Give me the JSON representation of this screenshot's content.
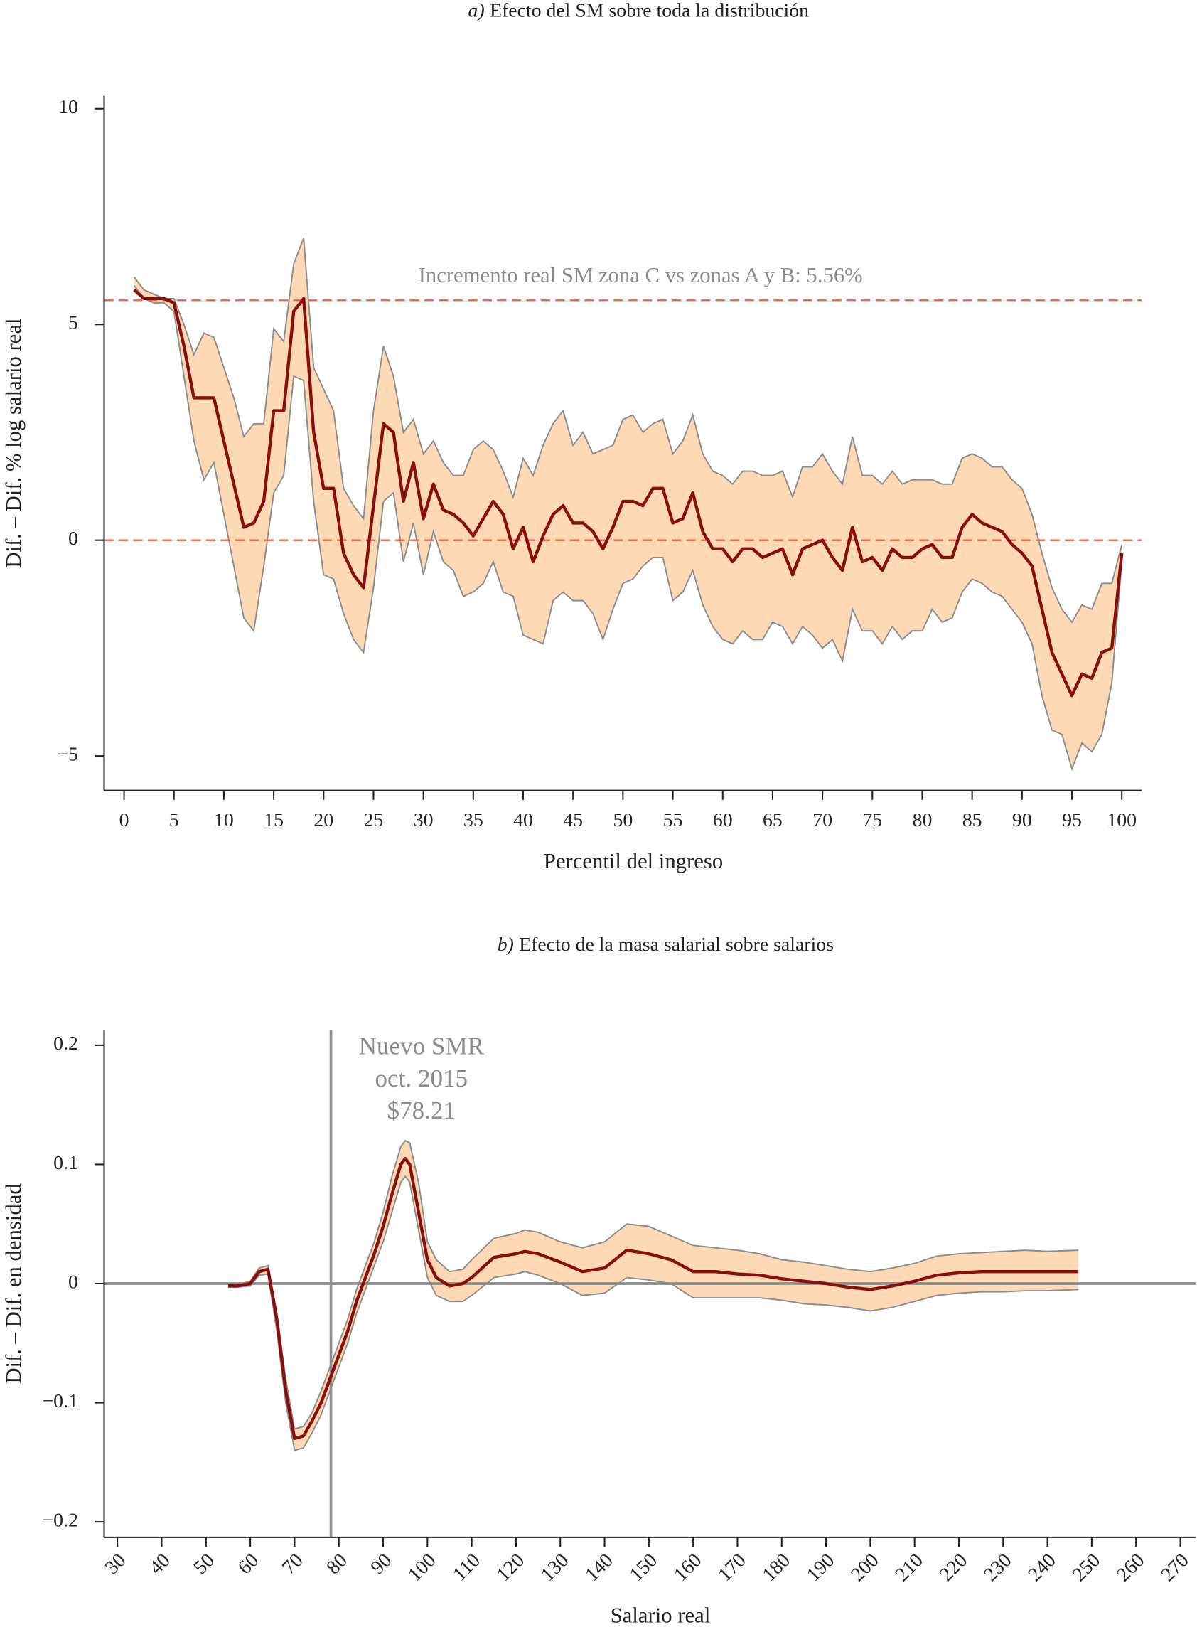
{
  "chart_data": [
    {
      "type": "line",
      "label": "a)",
      "title": "Efecto del SM sobre toda la distribución",
      "xlabel": "Percentil del ingreso",
      "ylabel": "Dif. – Dif. % log salario real",
      "xlim": [
        -2,
        102
      ],
      "ylim": [
        -5.8,
        10.3
      ],
      "xticks": [
        0,
        5,
        10,
        15,
        20,
        25,
        30,
        35,
        40,
        45,
        50,
        55,
        60,
        65,
        70,
        75,
        80,
        85,
        90,
        95,
        100
      ],
      "yticks": [
        {
          "value": -5,
          "label": "−5"
        },
        0,
        5,
        10
      ],
      "x": [
        1,
        2,
        3,
        4,
        5,
        6,
        7,
        8,
        9,
        10,
        11,
        12,
        13,
        14,
        15,
        16,
        17,
        18,
        19,
        20,
        21,
        22,
        23,
        24,
        25,
        26,
        27,
        28,
        29,
        30,
        31,
        32,
        33,
        34,
        35,
        36,
        37,
        38,
        39,
        40,
        41,
        42,
        43,
        44,
        45,
        46,
        47,
        48,
        49,
        50,
        51,
        52,
        53,
        54,
        55,
        56,
        57,
        58,
        59,
        60,
        61,
        62,
        63,
        64,
        65,
        66,
        67,
        68,
        69,
        70,
        71,
        72,
        73,
        74,
        75,
        76,
        77,
        78,
        79,
        80,
        81,
        82,
        83,
        84,
        85,
        86,
        87,
        88,
        89,
        90,
        91,
        92,
        93,
        94,
        95,
        96,
        97,
        98,
        99,
        100
      ],
      "values": [
        5.8,
        5.6,
        5.6,
        5.6,
        5.5,
        4.5,
        3.3,
        3.3,
        3.3,
        2.3,
        1.3,
        0.3,
        0.4,
        0.9,
        3.0,
        3.0,
        5.3,
        5.6,
        2.5,
        1.2,
        1.2,
        -0.3,
        -0.8,
        -1.1,
        0.8,
        2.7,
        2.5,
        0.9,
        1.8,
        0.5,
        1.3,
        0.7,
        0.6,
        0.4,
        0.1,
        0.5,
        0.9,
        0.6,
        -0.2,
        0.3,
        -0.5,
        0.1,
        0.6,
        0.8,
        0.4,
        0.4,
        0.2,
        -0.2,
        0.3,
        0.9,
        0.9,
        0.8,
        1.2,
        1.2,
        0.4,
        0.5,
        1.1,
        0.2,
        -0.2,
        -0.2,
        -0.5,
        -0.2,
        -0.2,
        -0.4,
        -0.3,
        -0.2,
        -0.8,
        -0.2,
        -0.1,
        0.0,
        -0.4,
        -0.7,
        0.3,
        -0.5,
        -0.4,
        -0.7,
        -0.2,
        -0.4,
        -0.4,
        -0.2,
        -0.1,
        -0.4,
        -0.4,
        0.3,
        0.6,
        0.4,
        0.3,
        0.2,
        -0.1,
        -0.3,
        -0.6,
        -1.6,
        -2.6,
        -3.1,
        -3.6,
        -3.1,
        -3.2,
        -2.6,
        -2.5,
        -0.3
      ],
      "upper": [
        6.1,
        5.8,
        5.7,
        5.6,
        5.6,
        5.0,
        4.3,
        4.8,
        4.7,
        4.0,
        3.3,
        2.4,
        2.7,
        2.7,
        4.9,
        4.6,
        6.4,
        7.0,
        4.0,
        3.5,
        3.0,
        1.2,
        0.8,
        0.5,
        3.0,
        4.5,
        3.8,
        2.5,
        2.8,
        2.0,
        2.3,
        1.8,
        1.5,
        1.5,
        2.1,
        2.3,
        2.1,
        1.6,
        1.0,
        1.9,
        1.5,
        2.2,
        2.7,
        3.0,
        2.2,
        2.5,
        2.0,
        2.1,
        2.2,
        2.8,
        2.9,
        2.5,
        2.7,
        2.8,
        2.0,
        2.3,
        2.9,
        2.0,
        1.6,
        1.5,
        1.3,
        1.6,
        1.6,
        1.5,
        1.5,
        1.6,
        1.0,
        1.7,
        1.7,
        2.0,
        1.6,
        1.3,
        2.4,
        1.5,
        1.5,
        1.3,
        1.6,
        1.3,
        1.4,
        1.4,
        1.4,
        1.3,
        1.3,
        1.9,
        2.0,
        1.9,
        1.7,
        1.7,
        1.4,
        1.2,
        0.6,
        -0.3,
        -1.1,
        -1.6,
        -1.9,
        -1.5,
        -1.6,
        -1.0,
        -1.0,
        -0.1
      ],
      "lower": [
        5.9,
        5.6,
        5.5,
        5.5,
        5.3,
        3.8,
        2.3,
        1.4,
        1.8,
        0.6,
        -0.6,
        -1.8,
        -2.1,
        -0.6,
        1.1,
        1.5,
        3.8,
        3.7,
        0.9,
        -0.8,
        -0.9,
        -1.7,
        -2.3,
        -2.6,
        -1.1,
        0.9,
        1.1,
        -0.5,
        0.4,
        -0.8,
        0.2,
        -0.5,
        -0.7,
        -1.3,
        -1.2,
        -1.0,
        -0.5,
        -1.2,
        -1.3,
        -2.2,
        -2.3,
        -2.4,
        -1.4,
        -1.2,
        -1.4,
        -1.4,
        -1.7,
        -2.3,
        -1.6,
        -1.0,
        -0.9,
        -0.6,
        -0.4,
        -0.4,
        -1.4,
        -1.2,
        -0.7,
        -1.5,
        -2.0,
        -2.3,
        -2.4,
        -2.1,
        -2.3,
        -2.3,
        -1.9,
        -2.0,
        -2.4,
        -2.0,
        -2.2,
        -2.5,
        -2.3,
        -2.8,
        -1.6,
        -2.1,
        -2.1,
        -2.4,
        -2.0,
        -2.3,
        -2.1,
        -2.1,
        -1.6,
        -1.9,
        -1.8,
        -1.2,
        -0.9,
        -1.0,
        -1.2,
        -1.3,
        -1.6,
        -1.9,
        -2.4,
        -3.6,
        -4.4,
        -4.5,
        -5.3,
        -4.7,
        -4.9,
        -4.5,
        -3.3,
        -0.5
      ],
      "color": "#8b0e0e",
      "band_color": "#fdd9b5",
      "band_edge": "#8c8c8c",
      "hlines": [
        {
          "value": 5.56,
          "label": "Incremento real SM zona C vs zonas A y B: 5.56%"
        },
        {
          "value": 0
        }
      ],
      "hline_color": "#e8643c",
      "hline_style": "dashed"
    },
    {
      "type": "line",
      "label": "b)",
      "title": "Efecto de la masa salarial sobre salarios",
      "xlabel": "Salario real",
      "ylabel": "Dif. – Dif. en densidad",
      "xlim": [
        27,
        273.5
      ],
      "ylim": [
        -0.213,
        0.213
      ],
      "xticks": [
        30,
        40,
        50,
        60,
        70,
        80,
        90,
        100,
        110,
        120,
        130,
        140,
        150,
        160,
        170,
        180,
        190,
        200,
        210,
        220,
        230,
        240,
        250,
        260,
        270
      ],
      "yticks": [
        {
          "value": -0.2,
          "label": "−0.2"
        },
        {
          "value": -0.1,
          "label": "−0.1"
        },
        0,
        0.1,
        0.2
      ],
      "x": [
        55,
        57,
        60,
        62,
        64,
        66,
        68,
        70,
        72,
        74,
        76,
        78,
        80,
        82,
        84,
        86,
        88,
        90,
        92,
        94,
        95,
        96,
        98,
        100,
        102,
        105,
        108,
        110,
        115,
        120,
        122,
        125,
        130,
        135,
        140,
        145,
        150,
        155,
        160,
        165,
        170,
        175,
        180,
        185,
        190,
        195,
        200,
        205,
        210,
        215,
        220,
        225,
        230,
        235,
        240,
        247
      ],
      "values": [
        -0.002,
        -0.002,
        0.0,
        0.01,
        0.012,
        -0.03,
        -0.09,
        -0.13,
        -0.128,
        -0.115,
        -0.1,
        -0.08,
        -0.06,
        -0.04,
        -0.015,
        0.005,
        0.025,
        0.048,
        0.075,
        0.1,
        0.105,
        0.1,
        0.06,
        0.02,
        0.005,
        -0.002,
        0.0,
        0.005,
        0.022,
        0.025,
        0.027,
        0.025,
        0.018,
        0.01,
        0.013,
        0.028,
        0.025,
        0.02,
        0.01,
        0.01,
        0.008,
        0.007,
        0.004,
        0.002,
        0.0,
        -0.003,
        -0.005,
        -0.002,
        0.002,
        0.007,
        0.009,
        0.01,
        0.01,
        0.01,
        0.01,
        0.01
      ],
      "upper": [
        -0.001,
        -0.001,
        0.002,
        0.013,
        0.015,
        -0.025,
        -0.08,
        -0.122,
        -0.12,
        -0.108,
        -0.09,
        -0.07,
        -0.05,
        -0.03,
        -0.005,
        0.015,
        0.035,
        0.06,
        0.09,
        0.115,
        0.12,
        0.118,
        0.085,
        0.035,
        0.02,
        0.01,
        0.012,
        0.02,
        0.038,
        0.042,
        0.045,
        0.043,
        0.035,
        0.03,
        0.035,
        0.05,
        0.048,
        0.04,
        0.032,
        0.03,
        0.028,
        0.025,
        0.02,
        0.018,
        0.015,
        0.012,
        0.01,
        0.013,
        0.017,
        0.023,
        0.025,
        0.026,
        0.027,
        0.028,
        0.027,
        0.028
      ],
      "lower": [
        -0.003,
        -0.003,
        -0.002,
        0.007,
        0.008,
        -0.04,
        -0.1,
        -0.14,
        -0.138,
        -0.125,
        -0.11,
        -0.09,
        -0.07,
        -0.05,
        -0.025,
        -0.005,
        0.015,
        0.035,
        0.06,
        0.085,
        0.09,
        0.085,
        0.045,
        0.005,
        -0.01,
        -0.015,
        -0.015,
        -0.01,
        0.005,
        0.008,
        0.01,
        0.007,
        0.0,
        -0.01,
        -0.008,
        0.005,
        0.003,
        0.0,
        -0.012,
        -0.012,
        -0.012,
        -0.012,
        -0.014,
        -0.017,
        -0.018,
        -0.02,
        -0.023,
        -0.02,
        -0.015,
        -0.01,
        -0.008,
        -0.007,
        -0.007,
        -0.006,
        -0.006,
        -0.005
      ],
      "color": "#8b0e0e",
      "band_color": "#fdd9b5",
      "band_edge": "#8c8c8c",
      "hlines": [
        {
          "value": 0
        }
      ],
      "hline_color": "#8c8c8c",
      "hline_style": "solid",
      "vlines": [
        {
          "value": 78.21,
          "label": "$78.21",
          "notes": [
            "Nuevo SMR",
            "oct. 2015"
          ]
        }
      ],
      "xtick_rotate": true
    }
  ]
}
